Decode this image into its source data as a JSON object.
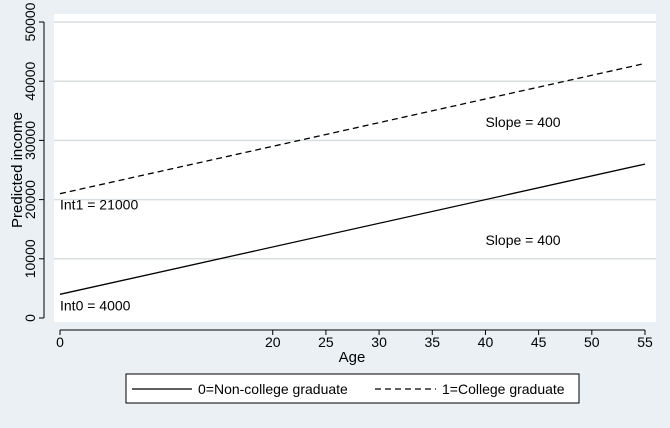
{
  "chart_data": {
    "type": "line",
    "xlabel": "Age",
    "ylabel": "Predicted income",
    "xlim": [
      0,
      55
    ],
    "ylim": [
      0,
      50000
    ],
    "x_ticks": [
      0,
      20,
      25,
      30,
      35,
      40,
      45,
      50,
      55
    ],
    "y_ticks": [
      0,
      10000,
      20000,
      30000,
      40000,
      50000
    ],
    "grid": "horizontal",
    "legend_position": "bottom",
    "series": [
      {
        "name": "0=Non-college graduate",
        "style": "solid",
        "color": "#000000",
        "x": [
          0,
          55
        ],
        "y": [
          4000,
          26000
        ]
      },
      {
        "name": "1=College graduate",
        "style": "dashed",
        "color": "#000000",
        "x": [
          0,
          55
        ],
        "y": [
          21000,
          43000
        ]
      }
    ],
    "annotations": [
      {
        "text": "Int0 = 4000",
        "x": 0,
        "y": 4000,
        "align": "left"
      },
      {
        "text": "Int1 = 21000",
        "x": 0,
        "y": 21000,
        "align": "left"
      },
      {
        "text": "Slope = 400",
        "x": 40,
        "y": 15000,
        "align": "left"
      },
      {
        "text": "Slope = 400",
        "x": 40,
        "y": 35000,
        "align": "left"
      }
    ]
  },
  "colors": {
    "background": "#eaf0f3",
    "plot_background": "#ffffff",
    "grid": "#d9dee1"
  }
}
